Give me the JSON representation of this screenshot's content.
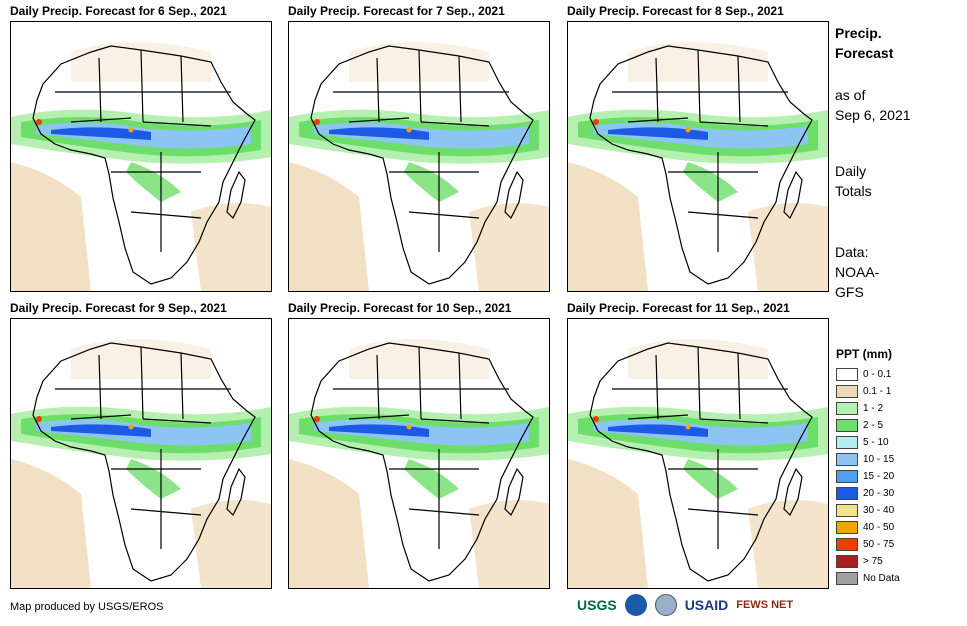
{
  "panels": [
    {
      "title": "Daily Precip. Forecast for 6 Sep., 2021"
    },
    {
      "title": "Daily Precip. Forecast for 7 Sep., 2021"
    },
    {
      "title": "Daily Precip. Forecast for 8 Sep., 2021"
    },
    {
      "title": "Daily Precip. Forecast for 9 Sep., 2021"
    },
    {
      "title": "Daily Precip. Forecast for 10 Sep., 2021"
    },
    {
      "title": "Daily Precip. Forecast for 11 Sep., 2021"
    }
  ],
  "side": {
    "title_line1": "Precip.",
    "title_line2": "Forecast",
    "asof_line1": "as of",
    "asof_line2": "Sep 6, 2021",
    "daily_line1": "Daily",
    "daily_line2": "Totals",
    "data_line1": "Data:",
    "data_line2": "NOAA-",
    "data_line3": "GFS"
  },
  "legend": {
    "title": "PPT (mm)",
    "items": [
      {
        "label": "0 - 0.1",
        "color": "#ffffff"
      },
      {
        "label": "0.1 - 1",
        "color": "#eed8b5"
      },
      {
        "label": "1 - 2",
        "color": "#b6f0b0"
      },
      {
        "label": "2 - 5",
        "color": "#6ede6a"
      },
      {
        "label": "5 - 10",
        "color": "#b4eef2"
      },
      {
        "label": "10 - 15",
        "color": "#8cc4f2"
      },
      {
        "label": "15 - 20",
        "color": "#4f9ef2"
      },
      {
        "label": "20 - 30",
        "color": "#1c5ae6"
      },
      {
        "label": "30 - 40",
        "color": "#f2e28a"
      },
      {
        "label": "40 - 50",
        "color": "#f2a400"
      },
      {
        "label": "50 - 75",
        "color": "#f23c00"
      },
      {
        "label": "> 75",
        "color": "#a82020"
      },
      {
        "label": "No Data",
        "color": "#a0a0a0"
      }
    ]
  },
  "credit": "Map produced by USGS/EROS",
  "logos": {
    "usgs": "USGS",
    "usaid": "USAID",
    "fewsnet": "FEWS NET"
  }
}
